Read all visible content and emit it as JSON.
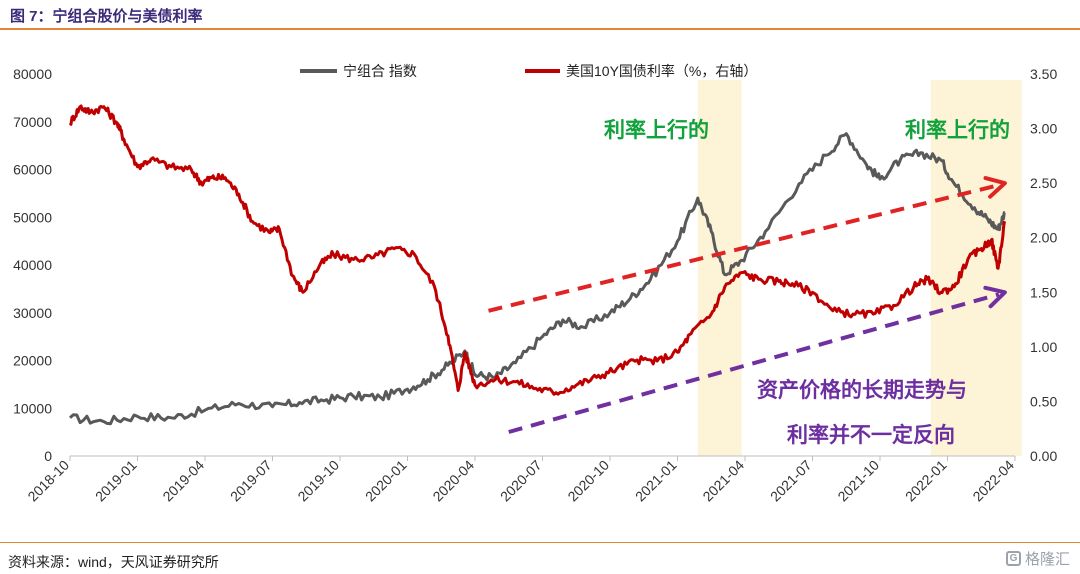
{
  "header": {
    "title": "图 7：宁组合股价与美债利率"
  },
  "footer": {
    "source": "资料来源：wind，天风证券研究所",
    "watermark": "格隆汇",
    "watermark_badge": "G"
  },
  "chart_data": {
    "type": "line",
    "x": [
      "2018-10",
      "2019-01",
      "2019-04",
      "2019-07",
      "2019-10",
      "2020-01",
      "2020-04",
      "2020-07",
      "2020-10",
      "2021-01",
      "2021-04",
      "2021-07",
      "2021-10",
      "2022-01",
      "2022-04"
    ],
    "y_left": {
      "ticks": [
        "0",
        "10000",
        "20000",
        "30000",
        "40000",
        "50000",
        "60000",
        "70000",
        "80000"
      ],
      "ylim": [
        0,
        80000
      ]
    },
    "y_right": {
      "ticks": [
        "0.00",
        "0.50",
        "1.00",
        "1.50",
        "2.00",
        "2.50",
        "3.00",
        "3.50"
      ],
      "ylim": [
        0,
        3.5
      ]
    },
    "series": [
      {
        "name": "宁组合 指数",
        "axis": "left",
        "color": "#595959",
        "points": [
          [
            0,
            8000
          ],
          [
            0.5,
            7200
          ],
          [
            1,
            8300
          ],
          [
            1.5,
            8000
          ],
          [
            2,
            9600
          ],
          [
            2.5,
            11000
          ],
          [
            3,
            10300
          ],
          [
            3.4,
            11200
          ],
          [
            3.8,
            11800
          ],
          [
            4.2,
            12500
          ],
          [
            4.6,
            12300
          ],
          [
            5,
            14000
          ],
          [
            5.3,
            16000
          ],
          [
            5.6,
            19000
          ],
          [
            5.85,
            22000
          ],
          [
            6,
            17000
          ],
          [
            6.3,
            16500
          ],
          [
            6.6,
            19500
          ],
          [
            7,
            25000
          ],
          [
            7.3,
            28500
          ],
          [
            7.6,
            27000
          ],
          [
            8,
            30000
          ],
          [
            8.3,
            33000
          ],
          [
            8.6,
            37000
          ],
          [
            9,
            45000
          ],
          [
            9.3,
            54000
          ],
          [
            9.5,
            47000
          ],
          [
            9.7,
            38000
          ],
          [
            9.95,
            41000
          ],
          [
            10.3,
            47000
          ],
          [
            10.8,
            57000
          ],
          [
            11.2,
            63000
          ],
          [
            11.5,
            67500
          ],
          [
            11.8,
            61000
          ],
          [
            12,
            58000
          ],
          [
            12.3,
            62000
          ],
          [
            12.6,
            63500
          ],
          [
            12.9,
            62000
          ],
          [
            13.1,
            57000
          ],
          [
            13.4,
            52000
          ],
          [
            13.6,
            49500
          ],
          [
            13.75,
            47500
          ],
          [
            13.85,
            51000
          ]
        ]
      },
      {
        "name": "美国10Y国债利率（%，右轴）",
        "axis": "right",
        "color": "#c00000",
        "points": [
          [
            0,
            3.05
          ],
          [
            0.15,
            3.2
          ],
          [
            0.3,
            3.15
          ],
          [
            0.5,
            3.2
          ],
          [
            0.7,
            3.05
          ],
          [
            0.8,
            2.9
          ],
          [
            1,
            2.65
          ],
          [
            1.2,
            2.72
          ],
          [
            1.5,
            2.65
          ],
          [
            1.8,
            2.62
          ],
          [
            1.95,
            2.5
          ],
          [
            2.1,
            2.55
          ],
          [
            2.3,
            2.55
          ],
          [
            2.5,
            2.4
          ],
          [
            2.7,
            2.15
          ],
          [
            2.95,
            2.05
          ],
          [
            3.1,
            2.08
          ],
          [
            3.3,
            1.65
          ],
          [
            3.45,
            1.5
          ],
          [
            3.7,
            1.75
          ],
          [
            3.9,
            1.85
          ],
          [
            4.2,
            1.8
          ],
          [
            4.5,
            1.82
          ],
          [
            4.8,
            1.9
          ],
          [
            5.1,
            1.85
          ],
          [
            5.4,
            1.55
          ],
          [
            5.6,
            1.1
          ],
          [
            5.75,
            0.6
          ],
          [
            5.85,
            0.95
          ],
          [
            6,
            0.65
          ],
          [
            6.3,
            0.7
          ],
          [
            6.6,
            0.68
          ],
          [
            6.9,
            0.62
          ],
          [
            7.2,
            0.58
          ],
          [
            7.5,
            0.65
          ],
          [
            7.8,
            0.72
          ],
          [
            8.1,
            0.8
          ],
          [
            8.4,
            0.88
          ],
          [
            8.7,
            0.87
          ],
          [
            9,
            0.95
          ],
          [
            9.2,
            1.12
          ],
          [
            9.5,
            1.3
          ],
          [
            9.7,
            1.55
          ],
          [
            9.95,
            1.68
          ],
          [
            10.2,
            1.62
          ],
          [
            10.5,
            1.6
          ],
          [
            10.7,
            1.58
          ],
          [
            11,
            1.5
          ],
          [
            11.3,
            1.33
          ],
          [
            11.6,
            1.3
          ],
          [
            11.9,
            1.3
          ],
          [
            12.2,
            1.38
          ],
          [
            12.5,
            1.55
          ],
          [
            12.7,
            1.62
          ],
          [
            12.9,
            1.5
          ],
          [
            13.1,
            1.55
          ],
          [
            13.3,
            1.8
          ],
          [
            13.5,
            1.9
          ],
          [
            13.65,
            1.98
          ],
          [
            13.75,
            1.72
          ],
          [
            13.85,
            2.15
          ]
        ]
      }
    ],
    "annotations": {
      "highlight_1": "利率上行的",
      "highlight_2": "利率上行的",
      "conclusion_line1": "资产价格的长期走势与",
      "conclusion_line2": "利率并不一定反向"
    },
    "highlight_bands_x": [
      [
        9.3,
        9.95
      ],
      [
        12.75,
        14.1
      ]
    ],
    "arrows": [
      {
        "color": "#e02424",
        "from_x": 6.2,
        "from_y_right": 1.33,
        "to_x": 13.85,
        "to_y_right": 2.5
      },
      {
        "color": "#7030a0",
        "from_x": 6.5,
        "from_y_right": 0.22,
        "to_x": 13.85,
        "to_y_right": 1.5
      }
    ]
  }
}
